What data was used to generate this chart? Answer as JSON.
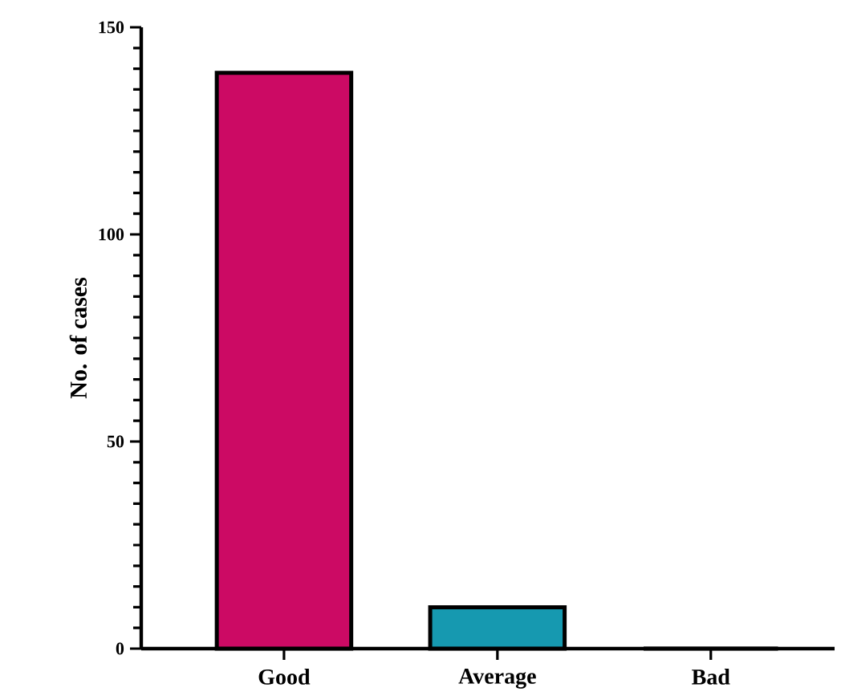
{
  "chart_data": {
    "type": "bar",
    "ylabel": "No. of cases",
    "categories": [
      "Good",
      "Average",
      "Bad"
    ],
    "values": [
      139,
      10,
      0
    ],
    "colors": [
      "#cc0a64",
      "#1699b0",
      "#888888"
    ],
    "ylim": [
      0,
      150
    ],
    "yticks": [
      0,
      50,
      100,
      150
    ],
    "grid": false
  }
}
